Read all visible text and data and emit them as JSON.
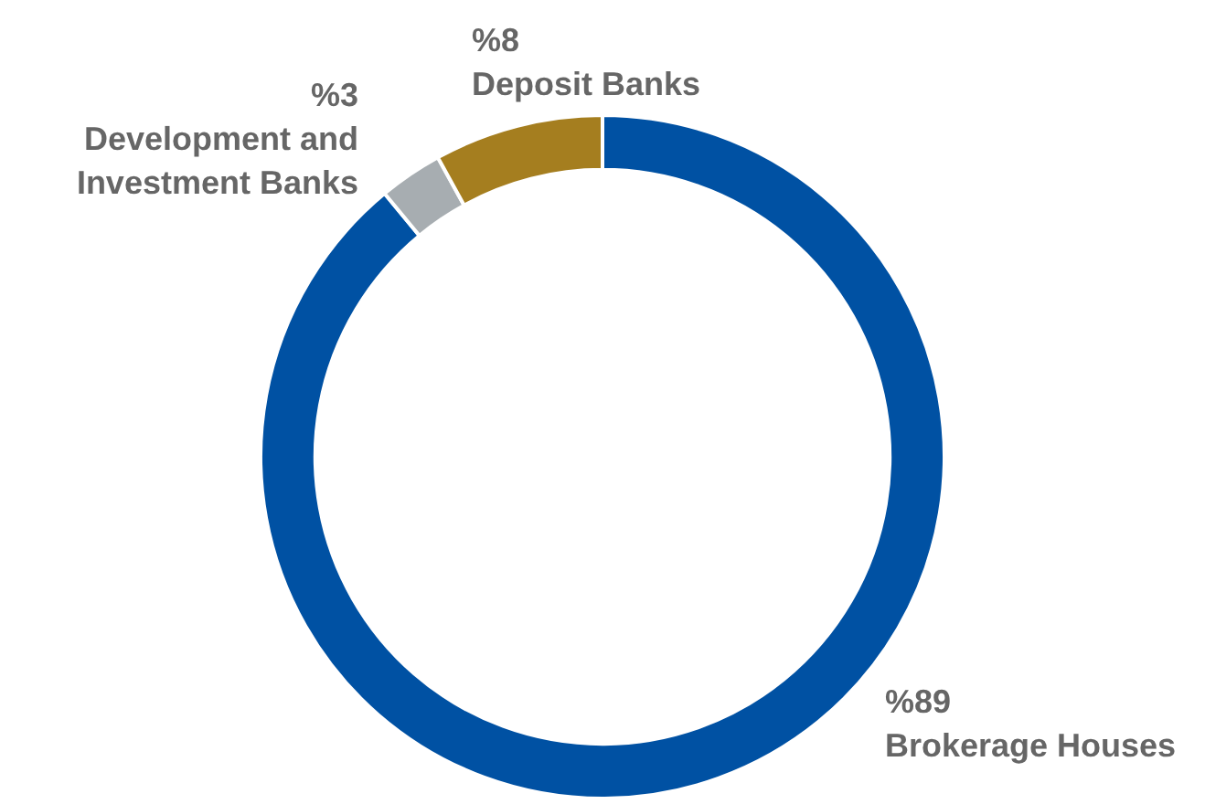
{
  "chart_data": {
    "type": "donut",
    "categories": [
      "Brokerage Houses",
      "Development and Investment Banks",
      "Deposit Banks"
    ],
    "values": [
      89,
      3,
      8
    ],
    "value_labels": [
      "%89",
      "%3",
      "%8"
    ],
    "colors": [
      "#0051a3",
      "#a7adb1",
      "#a57e1f"
    ]
  }
}
